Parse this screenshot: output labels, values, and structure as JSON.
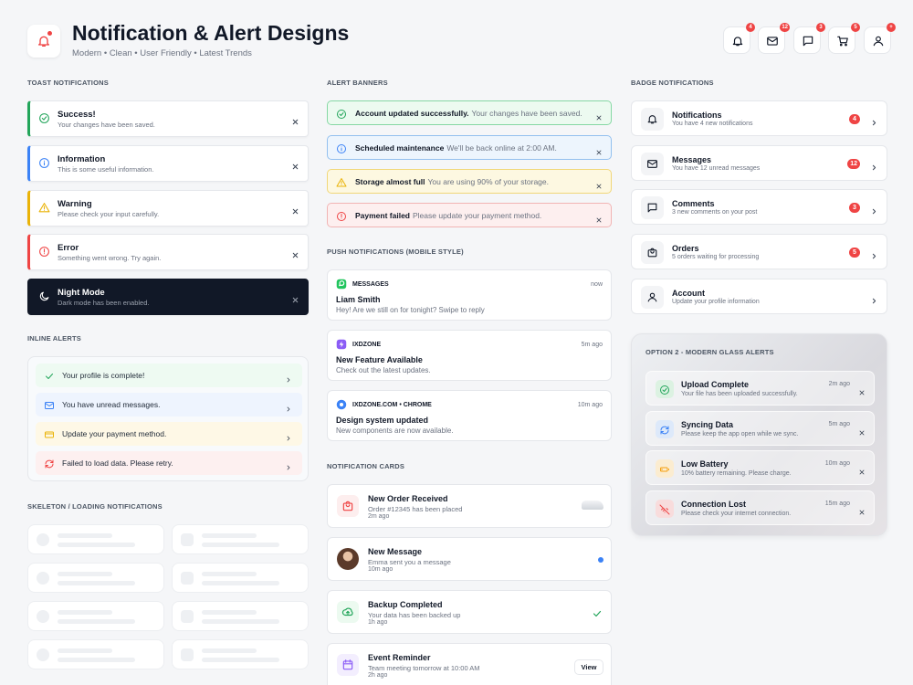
{
  "header": {
    "title": "Notification & Alert Designs",
    "subtitle": "Modern • Clean • User Friendly • Latest Trends",
    "badges": [
      4,
      12,
      3,
      5,
      "+"
    ]
  },
  "toast": {
    "heading": "TOAST NOTIFICATIONS",
    "items": [
      {
        "title": "Success!",
        "text": "Your changes have been saved."
      },
      {
        "title": "Information",
        "text": "This is some useful information."
      },
      {
        "title": "Warning",
        "text": "Please check your input carefully."
      },
      {
        "title": "Error",
        "text": "Something went wrong. Try again."
      },
      {
        "title": "Night Mode",
        "text": "Dark mode has been enabled."
      }
    ]
  },
  "inline": {
    "heading": "INLINE ALERTS",
    "items": [
      "Your profile is complete!",
      "You have unread messages.",
      "Update your payment method.",
      "Failed to load data. Please retry."
    ]
  },
  "skeleton": {
    "heading": "SKELETON / LOADING NOTIFICATIONS"
  },
  "banners": {
    "heading": "ALERT BANNERS",
    "items": [
      {
        "title": "Account updated successfully.",
        "text": "Your changes have been saved."
      },
      {
        "title": "Scheduled maintenance",
        "text": "We'll be back online at 2:00 AM."
      },
      {
        "title": "Storage almost full",
        "text": "You are using 90% of your storage."
      },
      {
        "title": "Payment failed",
        "text": "Please update your payment method."
      }
    ]
  },
  "push": {
    "heading": "PUSH NOTIFICATIONS (MOBILE STYLE)",
    "items": [
      {
        "app": "MESSAGES",
        "time": "now",
        "title": "Liam Smith",
        "text": "Hey! Are we still on for tonight? Swipe to reply"
      },
      {
        "app": "IXDZONE",
        "time": "5m ago",
        "title": "New Feature Available",
        "text": "Check out the latest updates."
      },
      {
        "app": "IXDZONE.COM • CHROME",
        "time": "10m ago",
        "title": "Design system updated",
        "text": "New components are now available."
      }
    ]
  },
  "cards": {
    "heading": "NOTIFICATION CARDS",
    "action": "View",
    "items": [
      {
        "title": "New Order Received",
        "text": "Order #12345 has been placed",
        "time": "2m ago"
      },
      {
        "title": "New Message",
        "text": "Emma sent you a message",
        "time": "10m ago"
      },
      {
        "title": "Backup Completed",
        "text": "Your data has been backed up",
        "time": "1h ago"
      },
      {
        "title": "Event Reminder",
        "text": "Team meeting tomorrow at 10:00 AM",
        "time": "2h ago"
      }
    ]
  },
  "badges": {
    "heading": "BADGE NOTIFICATIONS",
    "items": [
      {
        "title": "Notifications",
        "text": "You have 4 new notifications",
        "count": 4
      },
      {
        "title": "Messages",
        "text": "You have 12 unread messages",
        "count": 12
      },
      {
        "title": "Comments",
        "text": "3 new comments on your post",
        "count": 3
      },
      {
        "title": "Orders",
        "text": "5 orders waiting for processing",
        "count": 5
      },
      {
        "title": "Account",
        "text": "Update your profile information"
      }
    ]
  },
  "glass": {
    "heading": "OPTION 2 - MODERN GLASS ALERTS",
    "items": [
      {
        "title": "Upload Complete",
        "text": "Your file has been uploaded successfully.",
        "time": "2m ago"
      },
      {
        "title": "Syncing Data",
        "text": "Please keep the app open while we sync.",
        "time": "5m ago"
      },
      {
        "title": "Low Battery",
        "text": "10% battery remaining. Please charge.",
        "time": "10m ago"
      },
      {
        "title": "Connection Lost",
        "text": "Please check your internet connection.",
        "time": "15m ago"
      }
    ]
  }
}
